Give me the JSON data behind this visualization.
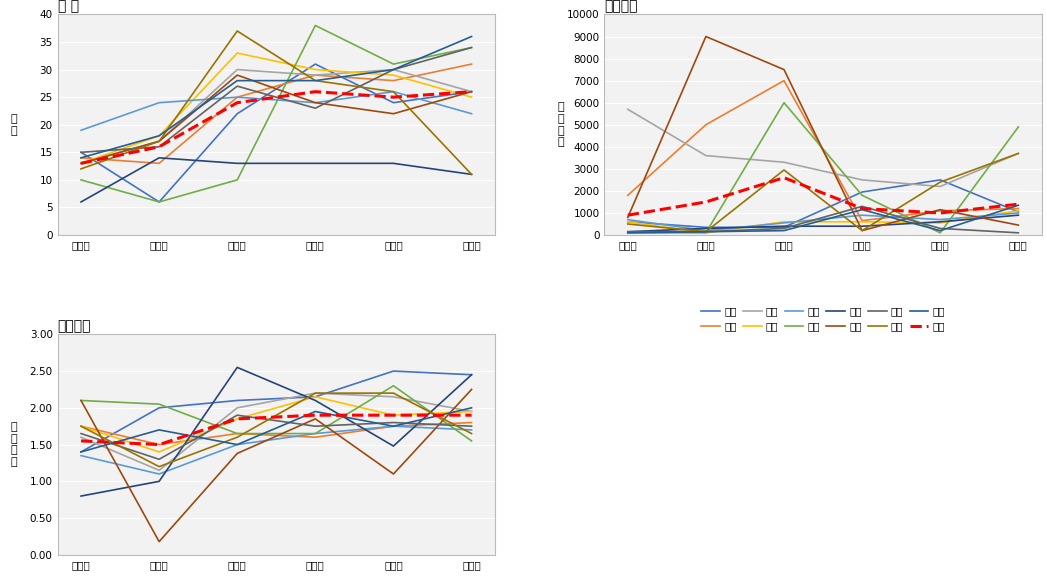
{
  "x_labels": [
    "활동기",
    "이양기",
    "분얼기",
    "수잉기",
    "출수기",
    "등숙기"
  ],
  "legend_labels": [
    "철원",
    "이천",
    "울산",
    "부안",
    "해남",
    "당진",
    "상주",
    "김포",
    "청주",
    "홍천",
    "순천",
    "평균"
  ],
  "colors": [
    "#4472c4",
    "#ed7d31",
    "#a5a5a5",
    "#ffc000",
    "#5b9bd5",
    "#70ad47",
    "#264478",
    "#9e480e",
    "#636363",
    "#997300",
    "#255e91",
    "#ff0000"
  ],
  "species_data": [
    [
      15,
      6,
      22,
      31,
      24,
      26
    ],
    [
      14,
      13,
      25,
      29,
      28,
      31
    ],
    [
      13,
      17,
      30,
      29,
      30,
      26
    ],
    [
      13,
      18,
      33,
      30,
      29,
      25
    ],
    [
      19,
      24,
      25,
      24,
      26,
      22
    ],
    [
      10,
      6,
      10,
      38,
      31,
      34
    ],
    [
      6,
      14,
      13,
      13,
      13,
      11
    ],
    [
      13,
      17,
      29,
      24,
      22,
      26
    ],
    [
      15,
      16,
      27,
      23,
      30,
      34
    ],
    [
      12,
      17,
      37,
      28,
      26,
      11
    ],
    [
      14,
      18,
      28,
      28,
      30,
      36
    ],
    [
      13,
      16,
      24,
      26,
      25,
      26
    ]
  ],
  "density_data": [
    [
      600,
      350,
      350,
      1950,
      2500,
      1050
    ],
    [
      1800,
      5000,
      7000,
      650,
      1100,
      1200
    ],
    [
      5700,
      3600,
      3300,
      2500,
      2200,
      3700
    ],
    [
      600,
      100,
      600,
      600,
      550,
      1100
    ],
    [
      700,
      200,
      550,
      900,
      700,
      1000
    ],
    [
      100,
      100,
      6000,
      1800,
      100,
      4900
    ],
    [
      150,
      300,
      400,
      400,
      600,
      900
    ],
    [
      800,
      9000,
      7500,
      200,
      1150,
      450
    ],
    [
      150,
      150,
      300,
      1300,
      300,
      100
    ],
    [
      500,
      150,
      2950,
      200,
      2400,
      3700
    ],
    [
      100,
      150,
      200,
      1150,
      200,
      1350
    ],
    [
      900,
      1500,
      2600,
      1200,
      1000,
      1400
    ]
  ],
  "diversity_data": [
    [
      1.4,
      2.0,
      2.1,
      2.15,
      2.5,
      2.45
    ],
    [
      1.75,
      1.5,
      1.65,
      1.6,
      1.75,
      1.8
    ],
    [
      1.6,
      1.15,
      2.0,
      2.2,
      2.15,
      1.95
    ],
    [
      1.75,
      1.4,
      1.85,
      2.15,
      1.9,
      1.95
    ],
    [
      1.35,
      1.1,
      1.5,
      1.65,
      1.75,
      1.7
    ],
    [
      2.1,
      2.05,
      1.65,
      1.65,
      2.3,
      1.55
    ],
    [
      0.8,
      1.0,
      2.55,
      2.1,
      1.48,
      2.45
    ],
    [
      2.1,
      0.18,
      1.38,
      1.85,
      1.1,
      2.25
    ],
    [
      1.65,
      1.3,
      1.9,
      1.75,
      1.8,
      1.75
    ],
    [
      1.75,
      1.2,
      1.6,
      2.2,
      2.2,
      1.65
    ],
    [
      1.4,
      1.7,
      1.5,
      1.95,
      1.75,
      2.0
    ],
    [
      1.55,
      1.5,
      1.85,
      1.9,
      1.9,
      1.9
    ]
  ],
  "title1": "종 수",
  "title2": "발생밀도",
  "title3": "종다양도",
  "ylabel1": "종\n수",
  "ylabel2": "발\n생\n밀\n도",
  "ylabel3": "종\n다\n양\n도",
  "ylim1": [
    0,
    40
  ],
  "ylim2": [
    0,
    10000
  ],
  "ylim3": [
    0.0,
    3.0
  ],
  "yticks1": [
    0,
    5,
    10,
    15,
    20,
    25,
    30,
    35,
    40
  ],
  "yticks2": [
    0,
    1000,
    2000,
    3000,
    4000,
    5000,
    6000,
    7000,
    8000,
    9000,
    10000
  ],
  "yticks3": [
    0.0,
    0.5,
    1.0,
    1.5,
    2.0,
    2.5,
    3.0
  ],
  "avg_color": "#ff0000",
  "avg_linewidth": 2.2,
  "line_linewidth": 1.2,
  "bg_color": "#f2f2f2"
}
